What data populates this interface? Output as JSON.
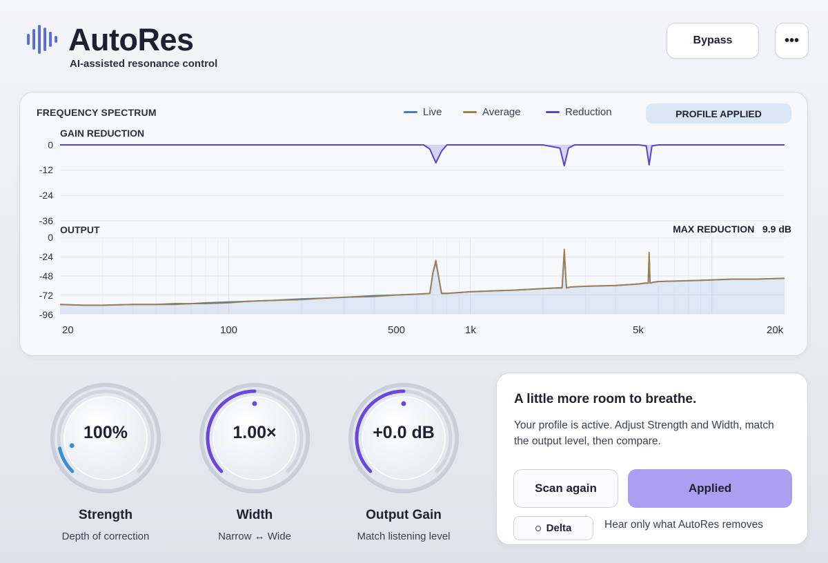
{
  "app": {
    "title": "AutoRes",
    "subtitle": "AI-assisted resonance control",
    "logo_icon": "waveform-bars-icon"
  },
  "toolbar": {
    "bypass_label": "Bypass",
    "more_label": "•••",
    "more_icon": "more-dots-icon"
  },
  "spectrum": {
    "title": "FREQUENCY SPECTRUM",
    "badge": "PROFILE APPLIED",
    "gain_reduction_label": "GAIN REDUCTION",
    "output_label": "OUTPUT",
    "max_reduction_label": "MAX REDUCTION",
    "max_reduction_value": "9.9 dB",
    "legend": [
      {
        "name": "Live",
        "color": "#3d7fc6"
      },
      {
        "name": "Average",
        "color": "#a0804a"
      },
      {
        "name": "Reduction",
        "color": "#5a43c8"
      }
    ]
  },
  "chart_data": [
    {
      "type": "area",
      "name": "GAIN REDUCTION",
      "x_scale": "log",
      "xlim": [
        20,
        20000
      ],
      "ylim": [
        -36,
        0
      ],
      "y_ticks": [
        "0",
        "-12",
        "-24",
        "-36"
      ],
      "series": [
        {
          "name": "Reduction",
          "color": "#5a43c8",
          "x": [
            20,
            100,
            500,
            640,
            680,
            720,
            760,
            800,
            1000,
            2000,
            2350,
            2450,
            2550,
            2700,
            5000,
            5350,
            5500,
            5650,
            6000,
            20000
          ],
          "y": [
            0,
            0,
            0,
            0,
            -2,
            -8.5,
            -3,
            0,
            0,
            0,
            -1.5,
            -9.9,
            -1.5,
            0,
            0,
            -0.5,
            -9.5,
            -0.5,
            0,
            0
          ]
        }
      ]
    },
    {
      "type": "line",
      "name": "OUTPUT",
      "x_scale": "log",
      "xlim": [
        20,
        20000
      ],
      "ylim": [
        -96,
        0
      ],
      "x_ticks": [
        "20",
        "100",
        "500",
        "1k",
        "5k",
        "20k"
      ],
      "y_ticks": [
        "0",
        "-24",
        "-48",
        "-72",
        "-96"
      ],
      "series": [
        {
          "name": "Live",
          "color": "#3d7fc6",
          "x": [
            20,
            25,
            30,
            40,
            50,
            60,
            70,
            80,
            100,
            120,
            150,
            200,
            250,
            300,
            400,
            500,
            600,
            680,
            700,
            720,
            760,
            800,
            1000,
            1200,
            1500,
            2000,
            2300,
            2400,
            2450,
            2500,
            2600,
            3000,
            4000,
            5000,
            5300,
            5450,
            5500,
            5550,
            5700,
            6000,
            8000,
            10000,
            12000,
            15000,
            20000
          ],
          "y": [
            -84,
            -85,
            -85,
            -84,
            -84,
            -83,
            -83,
            -82,
            -81,
            -80,
            -79,
            -77,
            -76,
            -75,
            -73,
            -72,
            -71,
            -70,
            -44,
            -30,
            -70,
            -70,
            -68,
            -67,
            -66,
            -64,
            -63,
            -63,
            -17,
            -63,
            -62,
            -61,
            -60,
            -58,
            -57,
            -57,
            -20,
            -57,
            -56,
            -55,
            -54,
            -53,
            -52,
            -52,
            -51
          ]
        },
        {
          "name": "Average",
          "color": "#a0804a",
          "x": [
            20,
            25,
            30,
            40,
            50,
            60,
            70,
            80,
            100,
            120,
            150,
            200,
            250,
            300,
            400,
            500,
            600,
            680,
            700,
            720,
            760,
            800,
            1000,
            1200,
            1500,
            2000,
            2300,
            2400,
            2450,
            2500,
            2600,
            3000,
            4000,
            5000,
            5300,
            5450,
            5500,
            5550,
            5700,
            6000,
            8000,
            10000,
            12000,
            15000,
            20000
          ],
          "y": [
            -84,
            -85,
            -85,
            -84,
            -84,
            -84,
            -83,
            -83,
            -82,
            -80,
            -79,
            -78,
            -76,
            -75,
            -74,
            -72,
            -71,
            -70,
            -44,
            -28,
            -70,
            -70,
            -68,
            -67,
            -66,
            -64,
            -63,
            -63,
            -14,
            -63,
            -62,
            -61,
            -60,
            -58,
            -57,
            -57,
            -18,
            -57,
            -56,
            -55,
            -54,
            -53,
            -52,
            -52,
            -51
          ]
        }
      ]
    }
  ],
  "knobs": [
    {
      "label": "Strength",
      "value": "100%",
      "description": "Depth of correction",
      "level": 0.12,
      "color": "#3d8fd0"
    },
    {
      "label": "Width",
      "value": "1.00×",
      "description": "Narrow ↔ Wide",
      "level": 0.5,
      "color": "#6a48d8"
    },
    {
      "label": "Output Gain",
      "value": "+0.0 dB",
      "description": "Match listening level",
      "level": 0.5,
      "color": "#6a48d8"
    }
  ],
  "info": {
    "headline": "A little more room to breathe.",
    "body": "Your profile is active. Adjust Strength and Width, match the output level, then compare.",
    "scan_label": "Scan again",
    "applied_label": "Applied",
    "delta_label": "Delta",
    "delta_hint": "Hear only what AutoRes removes"
  }
}
